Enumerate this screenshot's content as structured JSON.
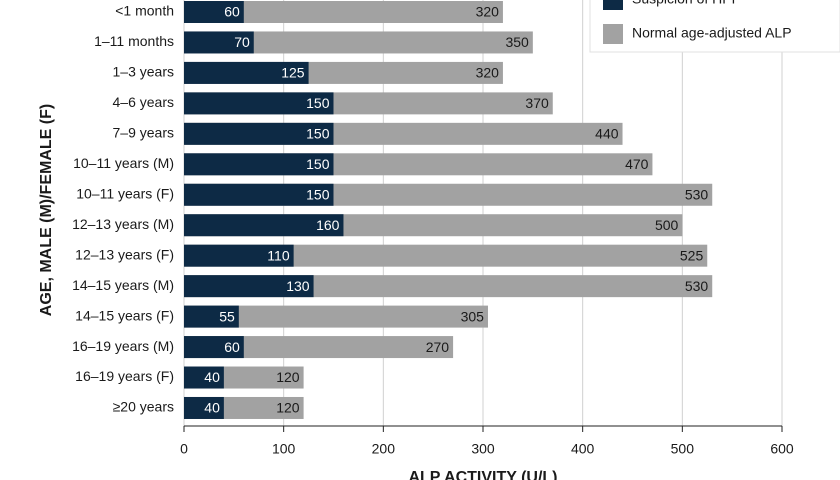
{
  "chart_data": {
    "type": "bar",
    "orientation": "horizontal",
    "overlap": true,
    "title": "ALP ACTIVITY (U/L)",
    "y_label": "AGE, MALE (M)/FEMALE (F)",
    "categories": [
      "<1 month",
      "1–11 months",
      "1–3 years",
      "4–6 years",
      "7–9 years",
      "10–11 years (M)",
      "10–11 years (F)",
      "12–13 years (M)",
      "12–13 years (F)",
      "14–15 years (M)",
      "14–15 years (F)",
      "16–19 years (M)",
      "16–19 years (F)",
      "≥20 years"
    ],
    "series": [
      {
        "name": "Normal age-adjusted ALP",
        "color": "#a2a2a2",
        "values": [
          320,
          350,
          320,
          370,
          440,
          470,
          530,
          500,
          525,
          530,
          305,
          270,
          120,
          120
        ]
      },
      {
        "name": "Suspicion of HPP",
        "color": "#0d2a45",
        "values": [
          60,
          70,
          125,
          150,
          150,
          150,
          150,
          160,
          110,
          130,
          55,
          60,
          40,
          40
        ]
      }
    ],
    "xlim": [
      0,
      600
    ],
    "xticks": [
      0,
      100,
      200,
      300,
      400,
      500,
      600
    ],
    "grid": true,
    "legend": "top-right"
  }
}
